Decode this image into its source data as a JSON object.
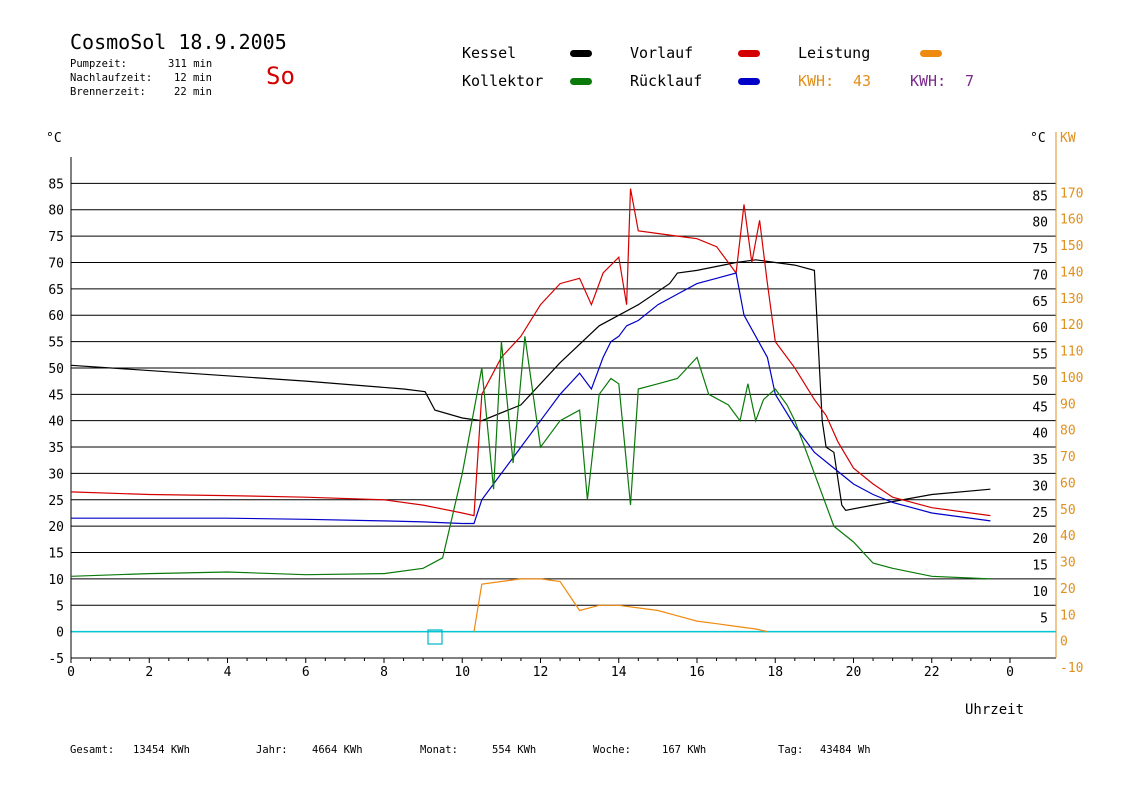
{
  "header": {
    "title": "CosmoSol 18.9.2005",
    "day": "So",
    "stats": [
      {
        "label": "Pumpzeit:",
        "value": "311 min"
      },
      {
        "label": "Nachlaufzeit:",
        "value": "12 min"
      },
      {
        "label": "Brennerzeit:",
        "value": "22 min"
      }
    ]
  },
  "legend": {
    "items": [
      {
        "label": "Kessel",
        "color": "#000000"
      },
      {
        "label": "Vorlauf",
        "color": "#d40000"
      },
      {
        "label": "Leistung",
        "color": "#ef8a10"
      },
      {
        "label": "Kollektor",
        "color": "#0a7a0a"
      },
      {
        "label": "Rücklauf",
        "color": "#0000c8"
      }
    ],
    "kwh": [
      {
        "label": "KWH:",
        "value": "43",
        "color": "#e0901c"
      },
      {
        "label": "KWH:",
        "value": "7",
        "color": "#7a2a8a"
      }
    ]
  },
  "footer": [
    {
      "label": "Gesamt:",
      "value": "13454 KWh"
    },
    {
      "label": "Jahr:",
      "value": "4664 KWh"
    },
    {
      "label": "Monat:",
      "value": "554 KWh"
    },
    {
      "label": "Woche:",
      "value": "167 KWh"
    },
    {
      "label": "Tag:",
      "value": "43484 Wh"
    }
  ],
  "chart_data": {
    "type": "line",
    "xlabel": "Uhrzeit",
    "ylabel_left": "°C",
    "ylabel_right": "°C",
    "ylabel_power": "KW",
    "xlim": [
      0,
      24
    ],
    "ylim": [
      -5,
      90
    ],
    "y_power_lim": [
      -10,
      180
    ],
    "x_ticks": [
      "0",
      "2",
      "4",
      "6",
      "8",
      "10",
      "12",
      "14",
      "16",
      "18",
      "20",
      "22",
      "0"
    ],
    "y_ticks_left": [
      -5,
      0,
      5,
      10,
      15,
      20,
      25,
      30,
      35,
      40,
      45,
      50,
      55,
      60,
      65,
      70,
      75,
      80,
      85
    ],
    "y_ticks_right": [
      5,
      10,
      15,
      20,
      25,
      30,
      35,
      40,
      45,
      50,
      55,
      60,
      65,
      70,
      75,
      80,
      85
    ],
    "y_ticks_power": [
      -10,
      0,
      10,
      20,
      30,
      40,
      50,
      60,
      70,
      80,
      90,
      100,
      110,
      120,
      130,
      140,
      150,
      160,
      170
    ],
    "grid": true,
    "series": [
      {
        "name": "Kessel",
        "color": "#000000",
        "x": [
          0,
          3,
          6,
          8.5,
          9.05,
          9.3,
          10,
          10.5,
          11.5,
          12.5,
          13.5,
          14.5,
          15.3,
          15.5,
          16,
          17,
          17.5,
          18,
          18.5,
          19,
          19.2,
          19.3,
          19.5,
          19.7,
          19.8,
          20.5,
          22,
          23.5
        ],
        "y": [
          50.5,
          49,
          47.5,
          46,
          45.5,
          42,
          40.5,
          40,
          43,
          51,
          58,
          62,
          66,
          68,
          68.5,
          70,
          70.5,
          70,
          69.5,
          68.5,
          40,
          35,
          34,
          24,
          23,
          24,
          26,
          27
        ]
      },
      {
        "name": "Vorlauf",
        "color": "#d40000",
        "x": [
          0,
          2,
          4,
          6,
          8,
          9,
          10,
          10.3,
          10.5,
          11,
          11.5,
          12,
          12.5,
          13,
          13.3,
          13.6,
          14,
          14.2,
          14.3,
          14.5,
          15,
          15.5,
          16,
          16.5,
          17,
          17.2,
          17.4,
          17.6,
          17.8,
          18,
          18.5,
          19,
          19.3,
          19.6,
          20,
          20.5,
          21,
          22,
          23.5
        ],
        "y": [
          26.5,
          26,
          25.8,
          25.5,
          25,
          24,
          22.5,
          22,
          45,
          52,
          56,
          62,
          66,
          67,
          62,
          68,
          71,
          62,
          84,
          76,
          75.5,
          75,
          74.5,
          73,
          68,
          81,
          70,
          78,
          66,
          55,
          50,
          44,
          41,
          36,
          31,
          28,
          25.5,
          23.5,
          22
        ]
      },
      {
        "name": "Rücklauf",
        "color": "#0000c8",
        "x": [
          0,
          2,
          4,
          6,
          8,
          9,
          10,
          10.3,
          10.5,
          11,
          11.5,
          12,
          12.5,
          13,
          13.3,
          13.6,
          13.8,
          14,
          14.2,
          14.5,
          15,
          15.5,
          16,
          16.5,
          17,
          17.2,
          17.5,
          17.8,
          18,
          18.5,
          19,
          19.5,
          20,
          20.5,
          21,
          22,
          23.5
        ],
        "y": [
          21.5,
          21.5,
          21.5,
          21.3,
          21,
          20.8,
          20.5,
          20.5,
          25,
          30,
          35,
          40,
          45,
          49,
          46,
          52,
          55,
          56,
          58,
          59,
          62,
          64,
          66,
          67,
          68,
          60,
          56,
          52,
          45,
          39,
          34,
          31,
          28,
          26,
          24.5,
          22.5,
          21
        ]
      },
      {
        "name": "Kollektor",
        "color": "#0a7a0a",
        "x": [
          0,
          2,
          4,
          6,
          8,
          9,
          9.5,
          10,
          10.5,
          10.8,
          11,
          11.3,
          11.6,
          12,
          12.5,
          13,
          13.2,
          13.5,
          13.8,
          14,
          14.3,
          14.5,
          15,
          15.5,
          16,
          16.3,
          16.8,
          17.1,
          17.3,
          17.5,
          17.7,
          18,
          18.3,
          18.5,
          19,
          19.5,
          20,
          20.5,
          21,
          22,
          23.5
        ],
        "y": [
          10.5,
          11,
          11.3,
          10.8,
          11,
          12,
          14,
          30,
          50,
          27,
          55,
          32,
          56,
          35,
          40,
          42,
          25,
          45,
          48,
          47,
          24,
          46,
          47,
          48,
          52,
          45,
          43,
          40,
          47,
          40,
          44,
          46,
          43,
          40,
          30,
          20,
          17,
          13,
          12,
          10.5,
          10
        ]
      },
      {
        "name": "Leistung",
        "color": "#ef8a10",
        "axis": "power",
        "x": [
          10.3,
          10.5,
          11,
          11.5,
          12,
          12.5,
          13,
          13.5,
          14,
          14.5,
          15,
          15.5,
          16,
          16.5,
          17,
          17.5,
          17.8
        ],
        "y": [
          0,
          18,
          19,
          20,
          20,
          19,
          8,
          10,
          10,
          9,
          8,
          6,
          4,
          3,
          2,
          1,
          0
        ]
      }
    ]
  }
}
